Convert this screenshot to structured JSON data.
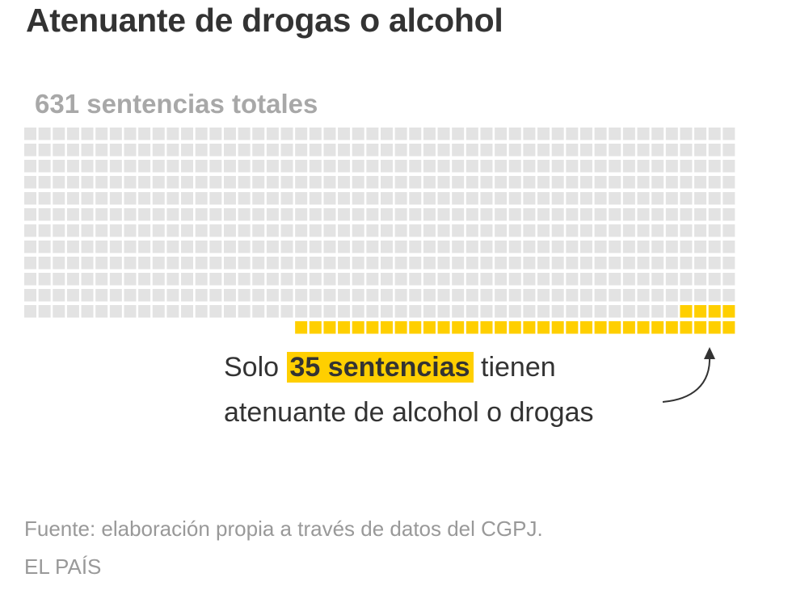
{
  "title": "Atenuante de drogas o alcohol",
  "subtitle": "631 sentencias totales",
  "annotation": {
    "prefix": "Solo",
    "highlight": "35 sentencias",
    "suffix": "tienen",
    "line2": "atenuante de alcohol o drogas"
  },
  "source": "Fuente: elaboración propia a través de datos del CGPJ.",
  "brand": "EL PAÍS",
  "chart_data": {
    "type": "waffle",
    "total": 631,
    "highlighted": 35,
    "columns": 50,
    "colors": {
      "base": "#e3e3e3",
      "highlight": "#ffcf00"
    }
  }
}
